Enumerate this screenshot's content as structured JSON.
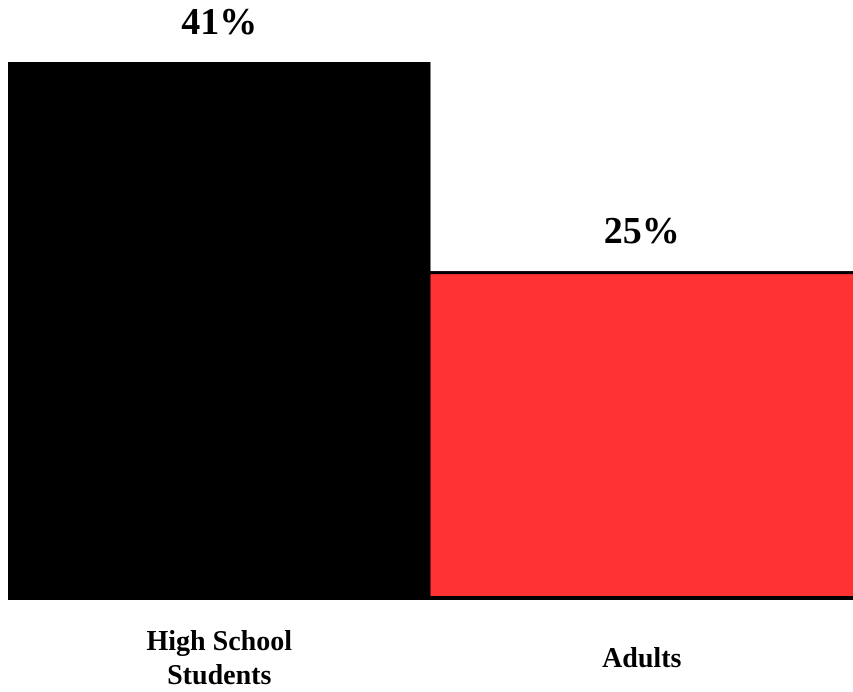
{
  "chart_data": {
    "type": "bar",
    "categories": [
      "High School Students",
      "Adults"
    ],
    "category_label_lines": [
      [
        "High School",
        "Students"
      ],
      [
        "Adults"
      ]
    ],
    "values": [
      41,
      25
    ],
    "data_labels": [
      "41%",
      "25%"
    ],
    "colors": [
      "#000000",
      "#ff3333"
    ],
    "ylim": [
      0,
      41
    ],
    "grid": false,
    "legend": "none",
    "title": "",
    "xlabel": "",
    "ylabel": ""
  }
}
